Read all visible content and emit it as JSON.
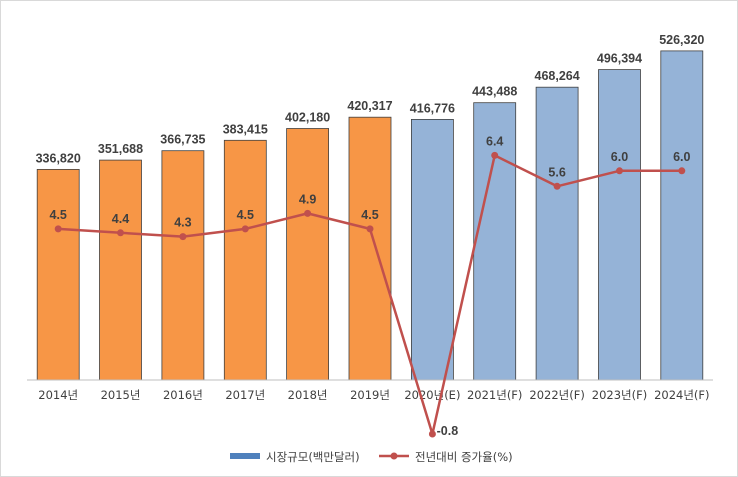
{
  "chart_data": {
    "type": "bar",
    "categories": [
      "2014년",
      "2015년",
      "2016년",
      "2017년",
      "2018년",
      "2019년",
      "2020년(E)",
      "2021년(F)",
      "2022년(F)",
      "2023년(F)",
      "2024년(F)"
    ],
    "series": [
      {
        "name": "시장규모(백만달러)",
        "type": "bar",
        "values": [
          336820,
          351688,
          366735,
          383415,
          402180,
          420317,
          416776,
          443488,
          468264,
          496394,
          526320
        ],
        "value_labels": [
          "336,820",
          "351,688",
          "366,735",
          "383,415",
          "402,180",
          "420,317",
          "416,776",
          "443,488",
          "468,264",
          "496,394",
          "526,320"
        ],
        "colors": [
          "#f79646",
          "#f79646",
          "#f79646",
          "#f79646",
          "#f79646",
          "#f79646",
          "#95b3d7",
          "#95b3d7",
          "#95b3d7",
          "#95b3d7",
          "#95b3d7"
        ]
      },
      {
        "name": "전년대비 증가율(%)",
        "type": "line",
        "values": [
          4.5,
          4.4,
          4.3,
          4.5,
          4.9,
          4.5,
          -0.8,
          6.4,
          5.6,
          6.0,
          6.0
        ],
        "value_labels": [
          "4.5",
          "4.4",
          "4.3",
          "4.5",
          "4.9",
          "4.5",
          "-0.8",
          "6.4",
          "5.6",
          "6.0",
          "6.0"
        ],
        "color": "#c0504d"
      }
    ],
    "bar_axis_range": [
      0,
      560000
    ],
    "line_axis_range": [
      -1.0,
      9.0
    ],
    "grid": false,
    "legend": "bottom",
    "legend_bar_color": "#4f81bd",
    "legend_line_color": "#c0504d"
  }
}
